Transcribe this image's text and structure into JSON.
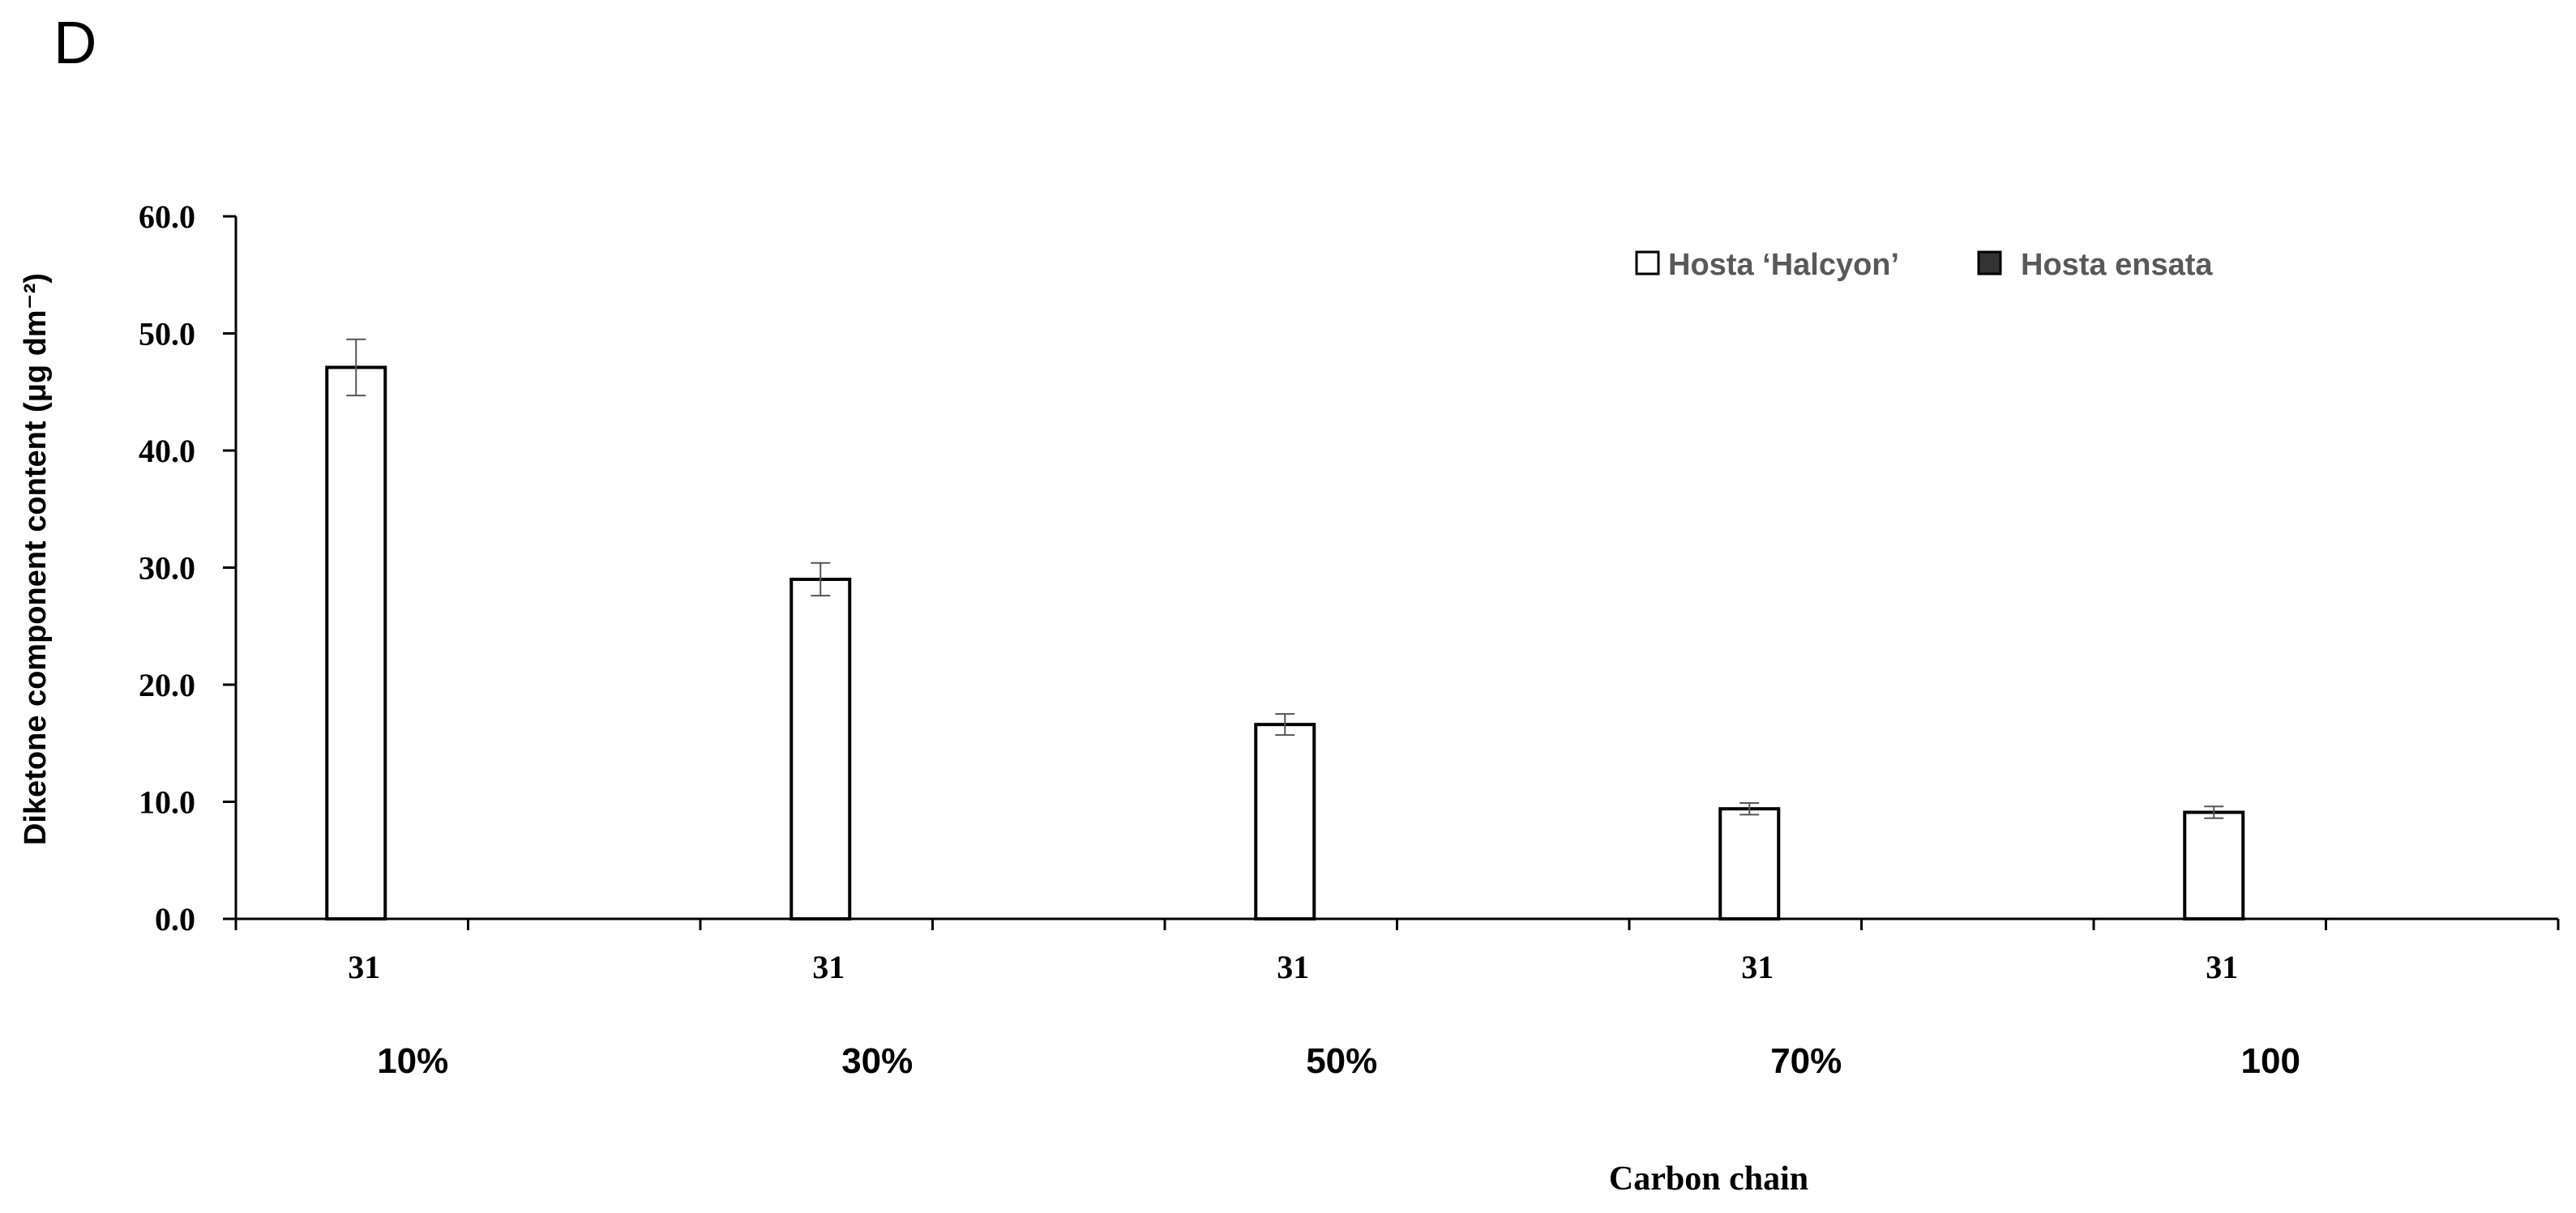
{
  "panel_label": "D",
  "chart_data": {
    "type": "bar",
    "categories": [
      "31",
      "31",
      "31",
      "31",
      "31"
    ],
    "groups": [
      "10%",
      "30%",
      "50%",
      "70%",
      "100"
    ],
    "series": [
      {
        "name": "Hosta ‘Halcyon’",
        "values": [
          47.1,
          29.0,
          16.6,
          9.4,
          9.1
        ],
        "errors": [
          2.4,
          1.4,
          0.9,
          0.5,
          0.5
        ],
        "fill": "#ffffff"
      },
      {
        "name": "Hosta ensata",
        "values": [
          0,
          0,
          0,
          0,
          0
        ],
        "errors": [
          0,
          0,
          0,
          0,
          0
        ],
        "fill": "#333333"
      }
    ],
    "title": "",
    "xlabel": "Carbon chain",
    "ylabel": "Diketone component content (μg dm⁻²)",
    "ylim": [
      0,
      60
    ],
    "yticks": [
      "0.0",
      "10.0",
      "20.0",
      "30.0",
      "40.0",
      "50.0",
      "60.0"
    ],
    "grid": false,
    "legend_position": "top-right"
  }
}
